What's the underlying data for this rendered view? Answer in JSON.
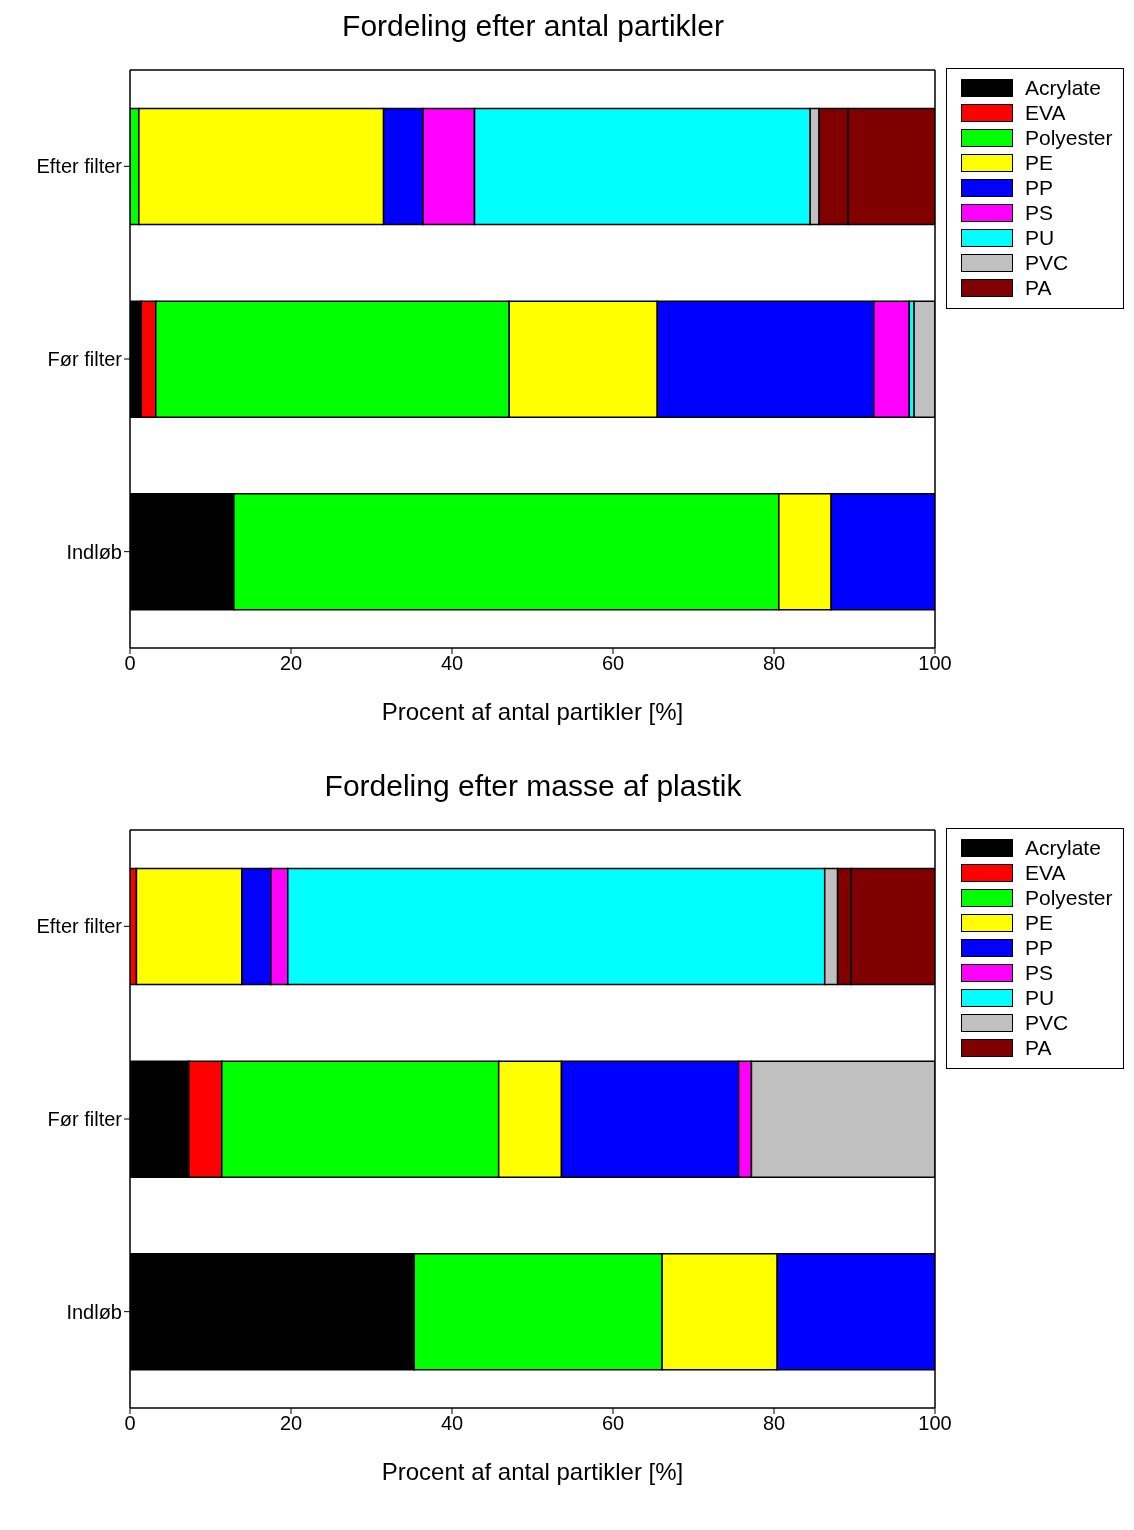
{
  "chart_data": [
    {
      "type": "bar",
      "orientation": "horizontal",
      "stacked": true,
      "title": "Fordeling efter antal partikler",
      "xlabel": "Procent af antal partikler [%]",
      "categories": [
        "Efter filter",
        "Før filter",
        "Indløb"
      ],
      "xlim": [
        0,
        100
      ],
      "xticks": [
        0,
        20,
        40,
        60,
        80,
        100
      ],
      "legend": "top right",
      "series": [
        {
          "name": "Acrylate",
          "color": "#000000",
          "values": [
            null,
            1.4,
            12.9
          ]
        },
        {
          "name": "EVA",
          "color": "#ff0000",
          "values": [
            0,
            1.8,
            0
          ]
        },
        {
          "name": "Polyester",
          "color": "#00ff00",
          "values": [
            1.1,
            43.9,
            67.7
          ]
        },
        {
          "name": "PE",
          "color": "#ffff00",
          "values": [
            30.4,
            18.4,
            6.5
          ]
        },
        {
          "name": "PP",
          "color": "#0000ff",
          "values": [
            4.9,
            26.9,
            12.9
          ]
        },
        {
          "name": "PS",
          "color": "#ff00ff",
          "values": [
            6.4,
            4.4,
            0
          ]
        },
        {
          "name": "PU",
          "color": "#00ffff",
          "values": [
            41.7,
            0.6,
            0
          ]
        },
        {
          "name": "PVC",
          "color": "#c0c0c0",
          "values": [
            1.1,
            2.6,
            0
          ]
        },
        {
          "name": "PA",
          "color": "#800000",
          "values": [
            3.6,
            0,
            0
          ]
        },
        {
          "color": "#800000",
          "values": [
            10.8,
            0,
            0
          ]
        }
      ]
    },
    {
      "type": "bar",
      "orientation": "horizontal",
      "stacked": true,
      "title": "Fordeling efter masse af plastik",
      "xlabel": "Procent af antal partikler [%]",
      "categories": [
        "Efter filter",
        "Før filter",
        "Indløb"
      ],
      "xlim": [
        0,
        100
      ],
      "xticks": [
        0,
        20,
        40,
        60,
        80,
        100
      ],
      "legend": "top right",
      "series": [
        {
          "name": "Acrylate",
          "color": "#000000",
          "values": [
            0,
            7.3,
            35.3
          ]
        },
        {
          "name": "EVA",
          "color": "#ff0000",
          "values": [
            0.8,
            4.1,
            0
          ]
        },
        {
          "name": "Polyester",
          "color": "#00ff00",
          "values": [
            0,
            34.4,
            30.8
          ]
        },
        {
          "name": "PE",
          "color": "#ffff00",
          "values": [
            13.1,
            7.8,
            14.3
          ]
        },
        {
          "name": "PP",
          "color": "#0000ff",
          "values": [
            3.6,
            22,
            19.6
          ]
        },
        {
          "name": "PS",
          "color": "#ff00ff",
          "values": [
            2.1,
            1.6,
            0
          ]
        },
        {
          "name": "PU",
          "color": "#00ffff",
          "values": [
            66.7,
            0,
            0
          ]
        },
        {
          "name": "PVC",
          "color": "#c0c0c0",
          "values": [
            1.6,
            22.8,
            0
          ]
        },
        {
          "name": "PA",
          "color": "#800000",
          "values": [
            1.7,
            0,
            0
          ]
        },
        {
          "color": "#800000",
          "values": [
            10.4,
            0,
            0
          ]
        }
      ]
    }
  ]
}
